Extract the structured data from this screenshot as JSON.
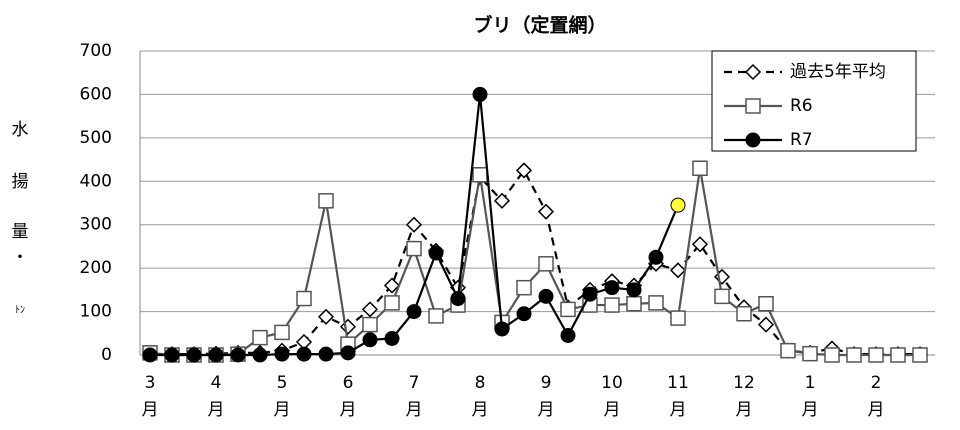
{
  "chart_data": {
    "type": "line",
    "title": "ブリ（定置網）",
    "y_label": [
      "水",
      "揚",
      "量",
      "・",
      "ﾄﾝ"
    ],
    "month_unit": "月",
    "categories": [
      "3",
      null,
      null,
      "4",
      null,
      null,
      "5",
      null,
      null,
      "6",
      null,
      null,
      "7",
      null,
      null,
      "8",
      null,
      null,
      "9",
      null,
      null,
      "10",
      null,
      null,
      "11",
      null,
      null,
      "12",
      null,
      null,
      "1",
      null,
      null,
      "2",
      null,
      null
    ],
    "ylim": [
      0,
      700
    ],
    "yticks": [
      0,
      100,
      200,
      300,
      400,
      500,
      600,
      700
    ],
    "grid": true,
    "legend": "top-right",
    "series": [
      {
        "name": "過去5年平均",
        "color": "#000000",
        "dash": true,
        "marker": "diamond",
        "values": [
          5,
          2,
          2,
          3,
          5,
          5,
          10,
          30,
          88,
          65,
          105,
          160,
          300,
          240,
          155,
          410,
          355,
          425,
          330,
          110,
          150,
          170,
          160,
          210,
          195,
          255,
          180,
          110,
          70,
          10,
          5,
          15,
          2,
          2,
          2,
          2
        ]
      },
      {
        "name": "R6",
        "color": "#555555",
        "dash": false,
        "marker": "square",
        "values": [
          5,
          0,
          0,
          0,
          2,
          40,
          52,
          130,
          355,
          25,
          70,
          120,
          245,
          90,
          115,
          415,
          75,
          155,
          210,
          105,
          115,
          115,
          118,
          120,
          85,
          430,
          135,
          95,
          118,
          10,
          3,
          0,
          0,
          0,
          0,
          0
        ]
      },
      {
        "name": "R7",
        "color": "#000000",
        "dash": false,
        "marker": "circle",
        "highlight_last": "#ffff33",
        "values": [
          0,
          0,
          0,
          0,
          0,
          0,
          2,
          2,
          2,
          5,
          35,
          38,
          100,
          235,
          130,
          600,
          60,
          95,
          135,
          45,
          140,
          155,
          150,
          225,
          345,
          null,
          null,
          null,
          null,
          null,
          null,
          null,
          null,
          null,
          null,
          null
        ]
      }
    ]
  }
}
